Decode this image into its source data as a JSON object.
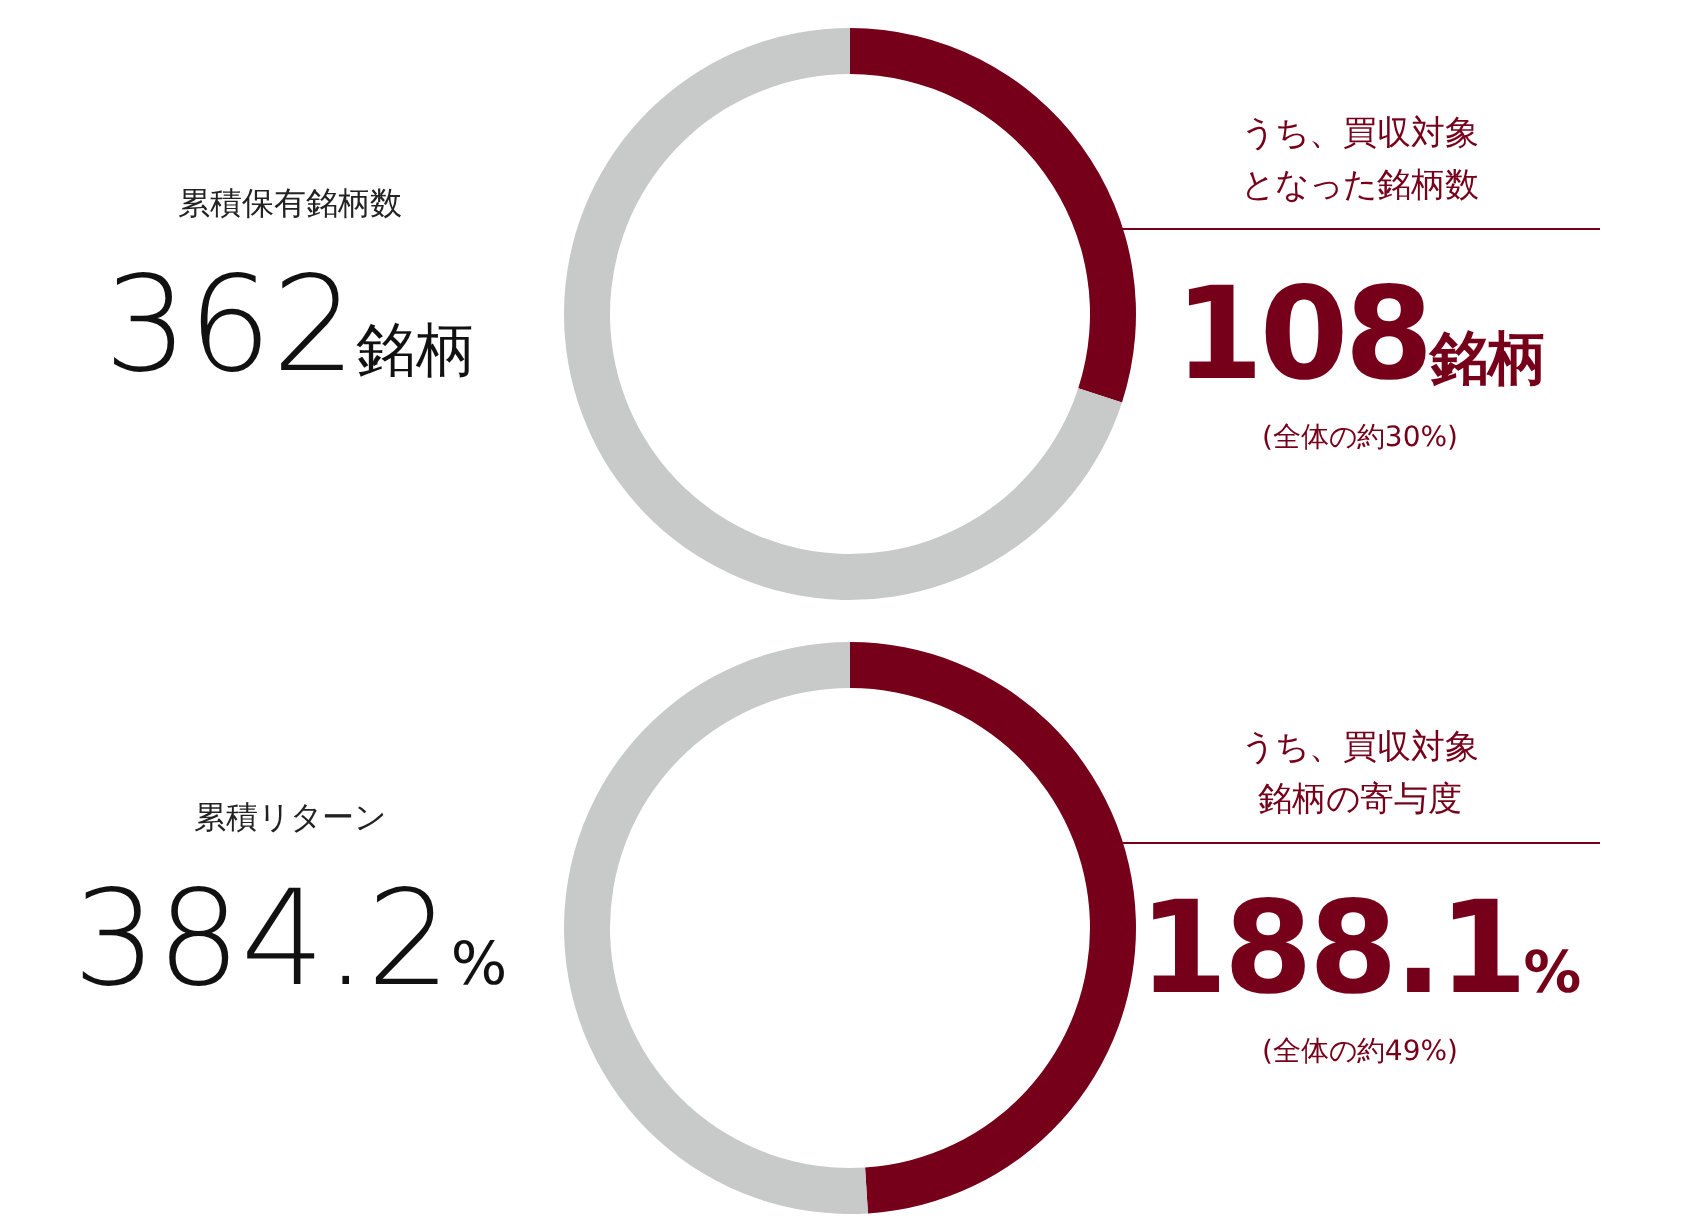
{
  "chart_data": [
    {
      "type": "donut",
      "title": "累積保有銘柄数",
      "categories": [
        null,
        null
      ],
      "values": [
        30,
        70
      ],
      "colors": [
        "#76001a",
        "#c8c9c9"
      ],
      "annotations": [
        "362銘柄",
        "うち、買収対象",
        "となった銘柄数",
        "108銘柄",
        "(全体の約30%)"
      ]
    },
    {
      "type": "donut",
      "title": "累積リターン",
      "categories": [
        null,
        null
      ],
      "values": [
        49,
        51
      ],
      "colors": [
        "#76001a",
        "#c8c9c9"
      ],
      "annotations": [
        "384.2%",
        "うち、買収対象",
        "銘柄の寄与度",
        "188.1%",
        "(全体の約49%)"
      ]
    }
  ]
}
